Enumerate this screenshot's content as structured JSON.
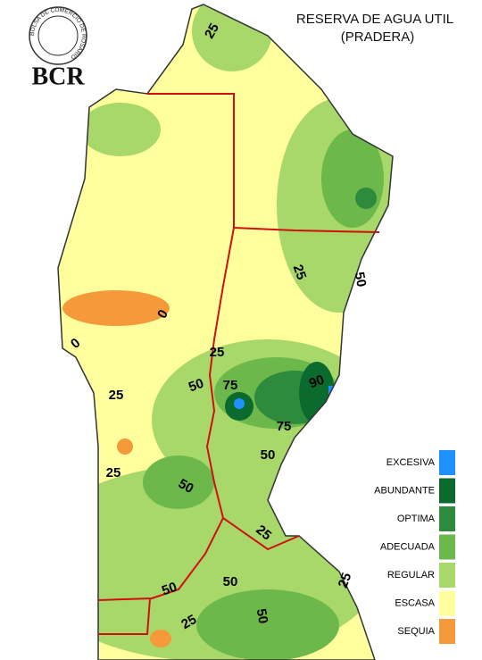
{
  "header": {
    "title": "RESERVA DE AGUA UTIL",
    "subtitle": "(PRADERA)"
  },
  "logo": {
    "text": "BCR",
    "ring": "BOLSA DE COMERCIO DE ROSARIO"
  },
  "legend": [
    {
      "label": "EXCESIVA",
      "color": "#1e90ff"
    },
    {
      "label": "ABUNDANTE",
      "color": "#0b6b2e"
    },
    {
      "label": "OPTIMA",
      "color": "#2e8b3e"
    },
    {
      "label": "ADECUADA",
      "color": "#6cb84a"
    },
    {
      "label": "REGULAR",
      "color": "#a8d86a"
    },
    {
      "label": "ESCASA",
      "color": "#ffff9e"
    },
    {
      "label": "SEQUIA",
      "color": "#f59a3a"
    }
  ],
  "contour_labels": [
    25,
    25,
    50,
    0,
    0,
    25,
    50,
    75,
    90,
    25,
    75,
    50,
    25,
    50,
    25,
    50,
    50,
    25,
    50,
    25
  ]
}
